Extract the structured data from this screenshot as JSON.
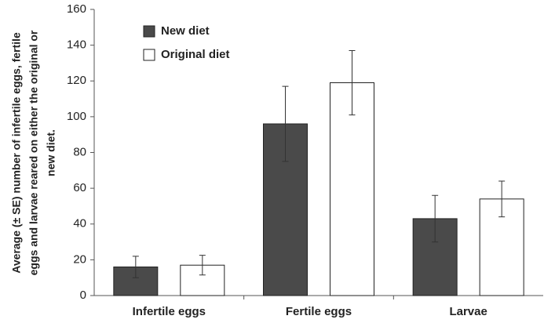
{
  "chart_data": {
    "type": "bar",
    "ylabel": [
      "Average (± SE) number of infertile eggs, fertile",
      "eggs and larvae reared on either the original or",
      "new diet."
    ],
    "categories": [
      "Infertile eggs",
      "Fertile eggs",
      "Larvae"
    ],
    "series": [
      {
        "name": "New diet",
        "color": "#4a4a4a",
        "values": [
          16,
          96,
          43
        ],
        "errors": [
          6,
          21,
          13
        ]
      },
      {
        "name": "Original diet",
        "color": "#ffffff",
        "values": [
          17,
          119,
          54
        ],
        "errors": [
          5.5,
          18,
          10
        ]
      }
    ],
    "ylim": [
      0,
      160
    ],
    "yticks": [
      0,
      20,
      40,
      60,
      80,
      100,
      120,
      140,
      160
    ],
    "grid": false,
    "legend": "top-left"
  }
}
